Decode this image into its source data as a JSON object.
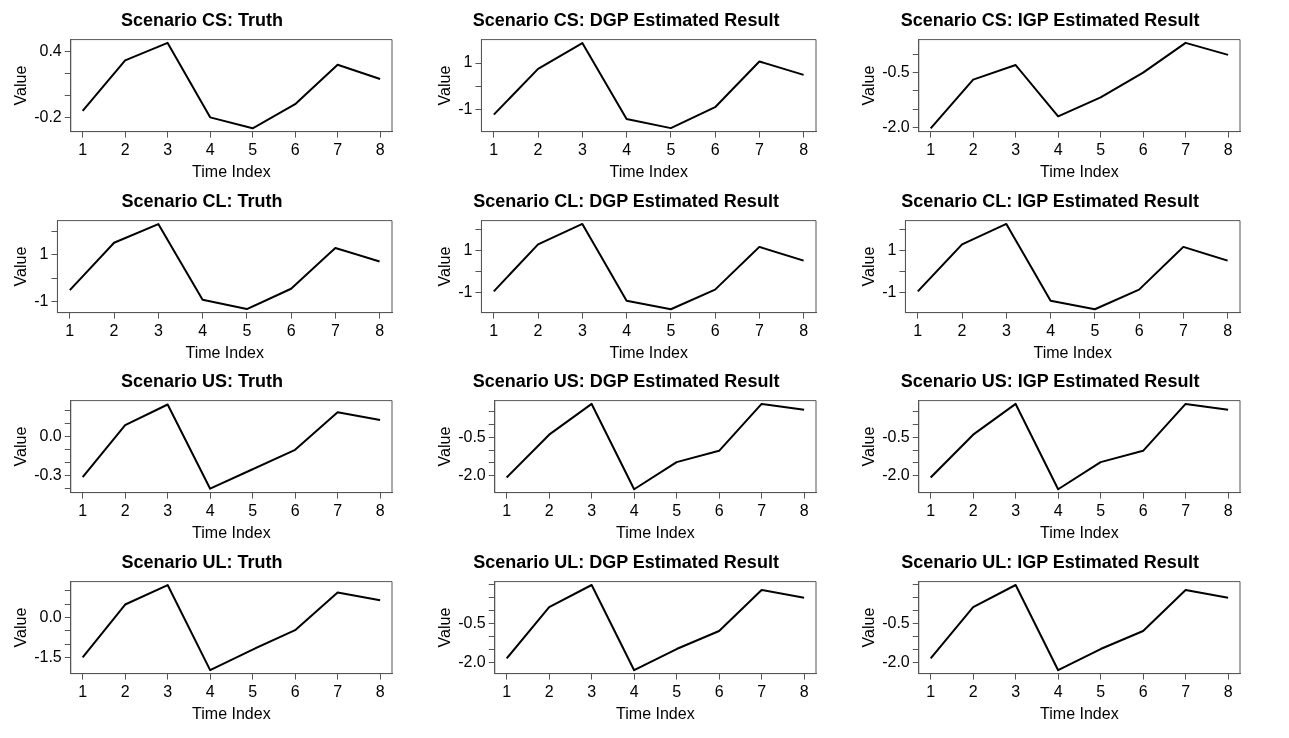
{
  "chart_data": [
    {
      "type": "line",
      "title": "Scenario CS: Truth",
      "xlabel": "Time Index",
      "ylabel": "Value",
      "color": "#000000",
      "grid": false,
      "x": [
        1,
        2,
        3,
        4,
        5,
        6,
        7,
        8
      ],
      "xlim": [
        0.72,
        8.28
      ],
      "xticks": [
        1,
        2,
        3,
        4,
        5,
        6,
        7,
        8
      ],
      "ylim": [
        -0.33,
        0.51
      ],
      "yticks": [
        -0.2,
        {
          "value": 0,
          "label": null
        },
        {
          "value": 0.2,
          "label": null
        },
        0.4
      ],
      "values": [
        -0.14,
        0.32,
        0.48,
        -0.2,
        -0.3,
        -0.08,
        0.28,
        0.15
      ]
    },
    {
      "type": "line",
      "title": "Scenario CS: DGP Estimated Result",
      "xlabel": "Time Index",
      "ylabel": "Value",
      "color": "#000000",
      "grid": false,
      "x": [
        1,
        2,
        3,
        4,
        5,
        6,
        7,
        8
      ],
      "xlim": [
        0.72,
        8.28
      ],
      "xticks": [
        1,
        2,
        3,
        4,
        5,
        6,
        7,
        8
      ],
      "ylim": [
        -1.95,
        2.01
      ],
      "yticks": [
        -1,
        {
          "value": 0,
          "label": null
        },
        1
      ],
      "values": [
        -1.22,
        0.75,
        1.86,
        -1.41,
        -1.8,
        -0.9,
        1.07,
        0.49
      ]
    },
    {
      "type": "line",
      "title": "Scenario CS: IGP Estimated Result",
      "xlabel": "Time Index",
      "ylabel": "Value",
      "color": "#000000",
      "grid": false,
      "x": [
        1,
        2,
        3,
        4,
        5,
        6,
        7,
        8
      ],
      "xlim": [
        0.72,
        8.28
      ],
      "xticks": [
        1,
        2,
        3,
        4,
        5,
        6,
        7,
        8
      ],
      "ylim": [
        -2.12,
        0.41
      ],
      "yticks": [
        {
          "value": -2,
          "label": "-2.0"
        },
        {
          "value": -1.5,
          "label": null
        },
        {
          "value": -1,
          "label": null
        },
        -0.5,
        {
          "value": 0,
          "label": null
        }
      ],
      "values": [
        -2.03,
        -0.69,
        -0.29,
        -1.7,
        -1.18,
        -0.5,
        0.32,
        -0.01
      ]
    },
    {
      "type": "line",
      "title": "Scenario CL: Truth",
      "xlabel": "Time Index",
      "ylabel": "Value",
      "color": "#000000",
      "grid": false,
      "x": [
        1,
        2,
        3,
        4,
        5,
        6,
        7,
        8
      ],
      "xlim": [
        0.72,
        8.28
      ],
      "xticks": [
        1,
        2,
        3,
        4,
        5,
        6,
        7,
        8
      ],
      "ylim": [
        -1.48,
        2.46
      ],
      "yticks": [
        -1,
        {
          "value": 0,
          "label": null
        },
        1,
        {
          "value": 2,
          "label": null
        }
      ],
      "values": [
        -0.52,
        1.51,
        2.31,
        -0.93,
        -1.33,
        -0.46,
        1.29,
        0.71
      ]
    },
    {
      "type": "line",
      "title": "Scenario CL: DGP Estimated Result",
      "xlabel": "Time Index",
      "ylabel": "Value",
      "color": "#000000",
      "grid": false,
      "x": [
        1,
        2,
        3,
        4,
        5,
        6,
        7,
        8
      ],
      "xlim": [
        0.72,
        8.28
      ],
      "xticks": [
        1,
        2,
        3,
        4,
        5,
        6,
        7,
        8
      ],
      "ylim": [
        -1.98,
        2.43
      ],
      "yticks": [
        -1,
        {
          "value": 0,
          "label": null
        },
        1,
        {
          "value": 2,
          "label": null
        }
      ],
      "values": [
        -0.96,
        1.29,
        2.27,
        -1.41,
        -1.82,
        -0.88,
        1.17,
        0.51
      ]
    },
    {
      "type": "line",
      "title": "Scenario CL: IGP Estimated Result",
      "xlabel": "Time Index",
      "ylabel": "Value",
      "color": "#000000",
      "grid": false,
      "x": [
        1,
        2,
        3,
        4,
        5,
        6,
        7,
        8
      ],
      "xlim": [
        0.72,
        8.28
      ],
      "xticks": [
        1,
        2,
        3,
        4,
        5,
        6,
        7,
        8
      ],
      "ylim": [
        -1.98,
        2.43
      ],
      "yticks": [
        -1,
        {
          "value": 0,
          "label": null
        },
        1,
        {
          "value": 2,
          "label": null
        }
      ],
      "values": [
        -0.96,
        1.29,
        2.27,
        -1.41,
        -1.82,
        -0.88,
        1.17,
        0.51
      ]
    },
    {
      "type": "line",
      "title": "Scenario US: Truth",
      "xlabel": "Time Index",
      "ylabel": "Value",
      "color": "#000000",
      "grid": false,
      "x": [
        1,
        2,
        3,
        4,
        5,
        6,
        7,
        8
      ],
      "xlim": [
        0.72,
        8.28
      ],
      "xticks": [
        1,
        2,
        3,
        4,
        5,
        6,
        7,
        8
      ],
      "ylim": [
        -0.43,
        0.28
      ],
      "yticks": [
        {
          "value": -0.4,
          "label": null
        },
        -0.3,
        {
          "value": -0.2,
          "label": null
        },
        {
          "value": -0.1,
          "label": null
        },
        {
          "value": 0,
          "label": "0.0"
        },
        {
          "value": 0.1,
          "label": null
        },
        {
          "value": 0.2,
          "label": null
        }
      ],
      "values": [
        -0.31,
        0.09,
        0.25,
        -0.4,
        -0.25,
        -0.1,
        0.19,
        0.13
      ]
    },
    {
      "type": "line",
      "title": "Scenario US: DGP Estimated Result",
      "xlabel": "Time Index",
      "ylabel": "Value",
      "color": "#000000",
      "grid": false,
      "x": [
        1,
        2,
        3,
        4,
        5,
        6,
        7,
        8
      ],
      "xlim": [
        0.72,
        8.28
      ],
      "xticks": [
        1,
        2,
        3,
        4,
        5,
        6,
        7,
        8
      ],
      "ylim": [
        -2.66,
        0.93
      ],
      "yticks": [
        {
          "value": -2,
          "label": "-2.0"
        },
        {
          "value": -1.5,
          "label": null
        },
        {
          "value": -1,
          "label": null
        },
        -0.5,
        {
          "value": 0,
          "label": null
        },
        {
          "value": 0.5,
          "label": null
        }
      ],
      "values": [
        -2.07,
        -0.4,
        0.8,
        -2.53,
        -1.47,
        -1.03,
        0.8,
        0.57
      ]
    },
    {
      "type": "line",
      "title": "Scenario US: IGP Estimated Result",
      "xlabel": "Time Index",
      "ylabel": "Value",
      "color": "#000000",
      "grid": false,
      "x": [
        1,
        2,
        3,
        4,
        5,
        6,
        7,
        8
      ],
      "xlim": [
        0.72,
        8.28
      ],
      "xticks": [
        1,
        2,
        3,
        4,
        5,
        6,
        7,
        8
      ],
      "ylim": [
        -2.66,
        0.93
      ],
      "yticks": [
        {
          "value": -2,
          "label": "-2.0"
        },
        {
          "value": -1.5,
          "label": null
        },
        {
          "value": -1,
          "label": null
        },
        -0.5,
        {
          "value": 0,
          "label": null
        },
        {
          "value": 0.5,
          "label": null
        }
      ],
      "values": [
        -2.07,
        -0.4,
        0.8,
        -2.53,
        -1.47,
        -1.03,
        0.8,
        0.57
      ]
    },
    {
      "type": "line",
      "title": "Scenario UL: Truth",
      "xlabel": "Time Index",
      "ylabel": "Value",
      "color": "#000000",
      "grid": false,
      "x": [
        1,
        2,
        3,
        4,
        5,
        6,
        7,
        8
      ],
      "xlim": [
        0.72,
        8.28
      ],
      "xticks": [
        1,
        2,
        3,
        4,
        5,
        6,
        7,
        8
      ],
      "ylim": [
        -2.11,
        1.34
      ],
      "yticks": [
        -1.5,
        {
          "value": -1,
          "label": null
        },
        {
          "value": -0.5,
          "label": null
        },
        {
          "value": 0,
          "label": "0.0"
        },
        {
          "value": 0.5,
          "label": null
        },
        {
          "value": 1,
          "label": null
        }
      ],
      "values": [
        -1.5,
        0.48,
        1.21,
        -1.98,
        -1.21,
        -0.48,
        0.93,
        0.64
      ]
    },
    {
      "type": "line",
      "title": "Scenario UL: DGP Estimated Result",
      "xlabel": "Time Index",
      "ylabel": "Value",
      "color": "#000000",
      "grid": false,
      "x": [
        1,
        2,
        3,
        4,
        5,
        6,
        7,
        8
      ],
      "xlim": [
        0.72,
        8.28
      ],
      "xticks": [
        1,
        2,
        3,
        4,
        5,
        6,
        7,
        8
      ],
      "ylim": [
        -2.42,
        1.1
      ],
      "yticks": [
        {
          "value": -2,
          "label": "-2.0"
        },
        {
          "value": -1.5,
          "label": null
        },
        {
          "value": -1,
          "label": null
        },
        -0.5,
        {
          "value": 0,
          "label": null
        },
        {
          "value": 0.5,
          "label": null
        },
        {
          "value": 1,
          "label": null
        }
      ],
      "values": [
        -1.84,
        0.12,
        0.97,
        -2.29,
        -1.48,
        -0.79,
        0.78,
        0.48
      ]
    },
    {
      "type": "line",
      "title": "Scenario UL: IGP Estimated Result",
      "xlabel": "Time Index",
      "ylabel": "Value",
      "color": "#000000",
      "grid": false,
      "x": [
        1,
        2,
        3,
        4,
        5,
        6,
        7,
        8
      ],
      "xlim": [
        0.72,
        8.28
      ],
      "xticks": [
        1,
        2,
        3,
        4,
        5,
        6,
        7,
        8
      ],
      "ylim": [
        -2.42,
        1.1
      ],
      "yticks": [
        {
          "value": -2,
          "label": "-2.0"
        },
        {
          "value": -1.5,
          "label": null
        },
        {
          "value": -1,
          "label": null
        },
        -0.5,
        {
          "value": 0,
          "label": null
        },
        {
          "value": 0.5,
          "label": null
        },
        {
          "value": 1,
          "label": null
        }
      ],
      "values": [
        -1.84,
        0.12,
        0.97,
        -2.29,
        -1.48,
        -0.79,
        0.78,
        0.48
      ]
    }
  ]
}
